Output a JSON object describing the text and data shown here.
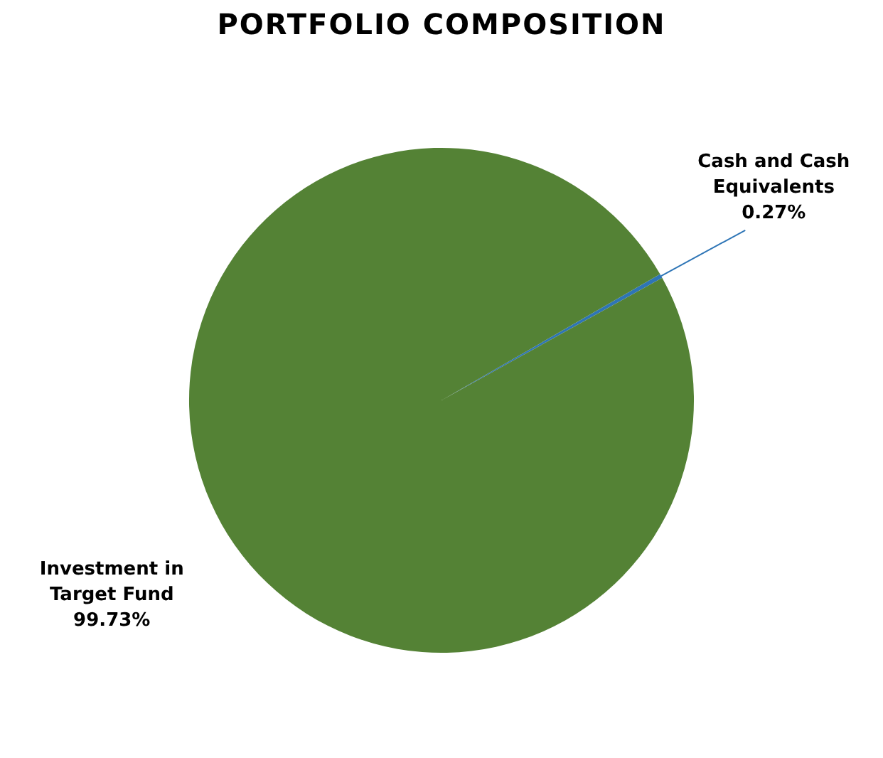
{
  "chart_data": {
    "type": "pie",
    "title": "PORTFOLIO COMPOSITION",
    "categories": [
      "Cash and Cash Equivalents",
      "Investment in Target Fund"
    ],
    "values": [
      0.27,
      99.73
    ],
    "colors": [
      "#2e75b6",
      "#548235"
    ],
    "value_labels": [
      "0.27%",
      "99.73%"
    ],
    "legend": false
  }
}
